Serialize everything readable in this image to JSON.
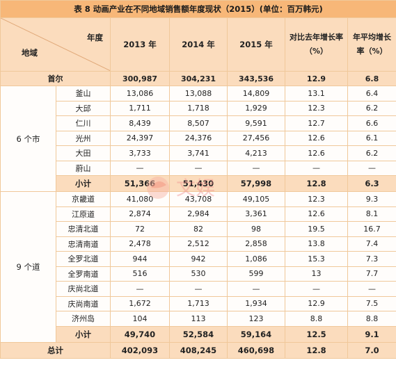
{
  "table": {
    "title": "表 8 动画产业在不同地域销售额年度现状（2015）(单位：百万韩元)",
    "header": {
      "year_label": "年度",
      "region_label": "地域",
      "y2013": "2013 年",
      "y2014": "2014 年",
      "y2015": "2015 年",
      "growth": "对比去年增长率（%）",
      "avg": "年平均增长率（%）"
    },
    "seoul": [
      "首尔",
      "300,987",
      "304,231",
      "343,536",
      "12.9",
      "6.8"
    ],
    "group1": {
      "label": "6 个市",
      "rows": [
        [
          "釜山",
          "13,086",
          "13,088",
          "14,809",
          "13.1",
          "6.4"
        ],
        [
          "大邱",
          "1,711",
          "1,718",
          "1,929",
          "12.3",
          "6.2"
        ],
        [
          "仁川",
          "8,439",
          "8,507",
          "9,591",
          "12.7",
          "6.6"
        ],
        [
          "光州",
          "24,397",
          "24,376",
          "27,456",
          "12.6",
          "6.1"
        ],
        [
          "大田",
          "3,733",
          "3,741",
          "4,213",
          "12.6",
          "6.2"
        ],
        [
          "蔚山",
          "—",
          "—",
          "—",
          "—",
          "—"
        ]
      ],
      "subtotal": [
        "小计",
        "51,366",
        "51,430",
        "57,998",
        "12.8",
        "6.3"
      ]
    },
    "group2": {
      "label": "9 个道",
      "rows": [
        [
          "京畿道",
          "41,080",
          "43,708",
          "49,105",
          "12.3",
          "9.3"
        ],
        [
          "江原道",
          "2,874",
          "2,984",
          "3,361",
          "12.6",
          "8.1"
        ],
        [
          "忠清北道",
          "72",
          "82",
          "98",
          "19.5",
          "16.7"
        ],
        [
          "忠清南道",
          "2,478",
          "2,512",
          "2,858",
          "13.8",
          "7.4"
        ],
        [
          "全罗北道",
          "944",
          "942",
          "1,086",
          "15.3",
          "7.3"
        ],
        [
          "全罗南道",
          "516",
          "530",
          "599",
          "13",
          "7.7"
        ],
        [
          "庆尚北道",
          "—",
          "—",
          "—",
          "—",
          "—"
        ],
        [
          "庆尚南道",
          "1,672",
          "1,713",
          "1,934",
          "12.9",
          "7.5"
        ],
        [
          "济州岛",
          "104",
          "113",
          "123",
          "8.8",
          "8.8"
        ]
      ],
      "subtotal": [
        "小计",
        "49,740",
        "52,584",
        "59,164",
        "12.5",
        "9.1"
      ]
    },
    "total": [
      "总计",
      "402,093",
      "408,245",
      "460,698",
      "12.8",
      "7.0"
    ]
  },
  "watermark": {
    "text": "文娱",
    "color": "#f08a8a"
  }
}
